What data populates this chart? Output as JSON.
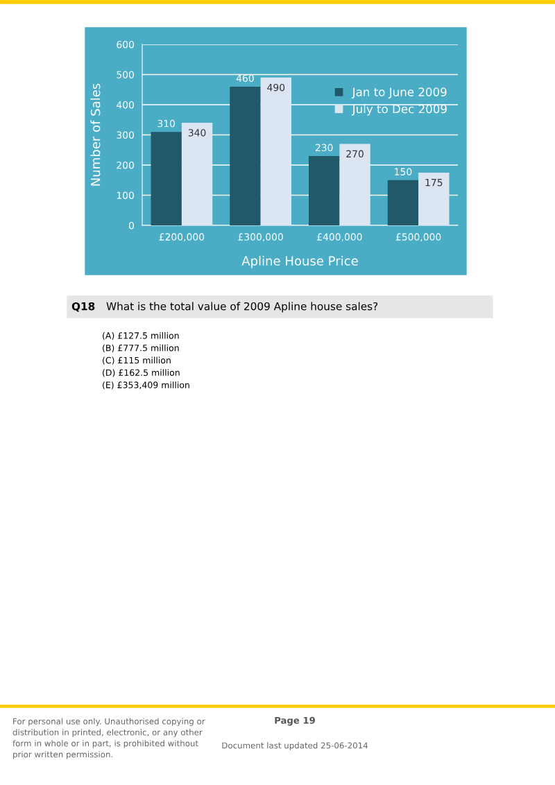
{
  "chart_data": {
    "type": "bar",
    "xlabel": "Apline House Price",
    "ylabel": "Number of Sales",
    "categories": [
      "£200,000",
      "£300,000",
      "£400,000",
      "£500,000"
    ],
    "series": [
      {
        "name": "Jan to June 2009",
        "color": "#215968",
        "values": [
          310,
          460,
          230,
          150
        ]
      },
      {
        "name": "July to Dec 2009",
        "color": "#dce6f2",
        "values": [
          340,
          490,
          270,
          175
        ]
      }
    ],
    "ylim": [
      0,
      600
    ],
    "yticks": [
      0,
      100,
      200,
      300,
      400,
      500,
      600
    ],
    "grid": "y",
    "legend": "top right",
    "data_labels": true,
    "annotations": [
      "Q18",
      "What is the total value of 2009 Apline house sales?",
      "(A) £127.5 million",
      "(B) £777.5 million",
      "(C) £115 million",
      "(D) £162.5 million",
      "(E) £353,409 million",
      "For personal use only. Unauthorised copying or\ndistribution in printed, electronic, or any other\nform in whole or in part, is prohibited without\nprior written permission.",
      "Page 19",
      "Document last updated 25-06-2014"
    ]
  }
}
